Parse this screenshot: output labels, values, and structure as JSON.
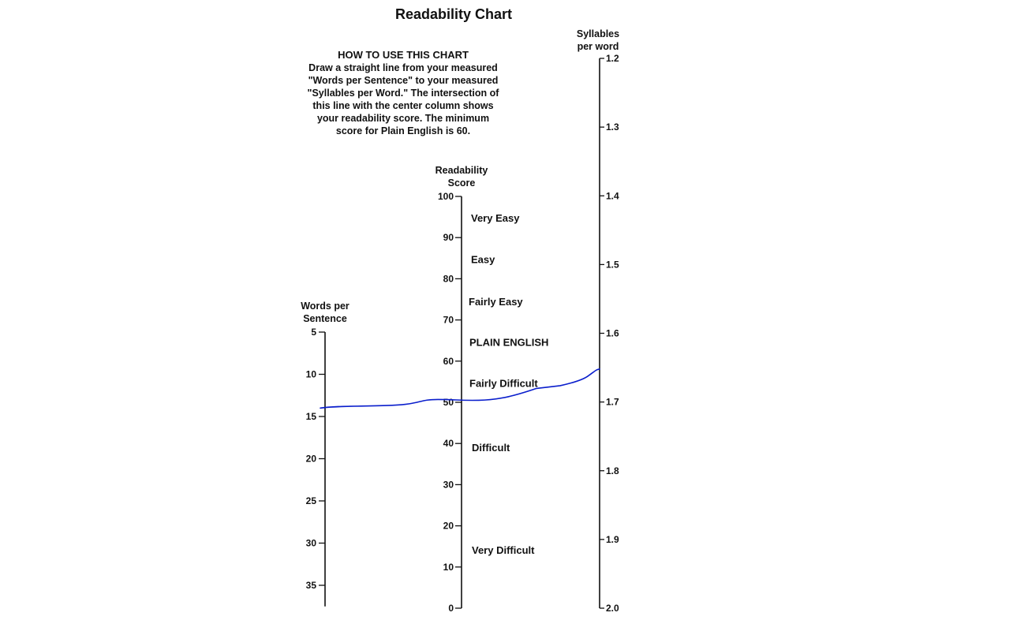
{
  "title": "Readability Chart",
  "instructions": {
    "heading": "HOW TO USE THIS CHART",
    "lines": [
      "Draw a straight line from your measured",
      "\"Words per Sentence\" to your measured",
      "\"Syllables per Word.\" The intersection of",
      "this line with the center column shows",
      "your readability score. The minimum",
      "score for Plain English is 60."
    ]
  },
  "axes": {
    "words": {
      "title_lines": [
        "Words per",
        "Sentence"
      ],
      "range": [
        5,
        37.5
      ],
      "ticks": [
        5,
        10,
        15,
        20,
        25,
        30,
        35
      ]
    },
    "score": {
      "title_lines": [
        "Readability",
        "Score"
      ],
      "range": [
        100,
        0
      ],
      "ticks": [
        100,
        90,
        80,
        70,
        60,
        50,
        40,
        30,
        20,
        10,
        0
      ],
      "bands": [
        {
          "label": "Very Easy",
          "at": 94.8
        },
        {
          "label": "Easy",
          "at": 84.8
        },
        {
          "label": "Fairly Easy",
          "at": 74.5
        },
        {
          "label": "PLAIN ENGLISH",
          "at": 64.7
        },
        {
          "label": "Fairly Difficult",
          "at": 54.7
        },
        {
          "label": "Difficult",
          "at": 39.1
        },
        {
          "label": "Very Difficult",
          "at": 14.2
        }
      ]
    },
    "syllables": {
      "title_lines": [
        "Syllables",
        "per word"
      ],
      "range": [
        1.2,
        2.0
      ],
      "ticks": [
        "1.2",
        "1.3",
        "1.4",
        "1.5",
        "1.6",
        "1.7",
        "1.8",
        "1.9",
        "2.0"
      ]
    }
  },
  "reading_line": {
    "color": "#0a1ecc",
    "words_per_sentence": 14,
    "readability_score": 50.4,
    "syllables_per_word": 1.652
  }
}
